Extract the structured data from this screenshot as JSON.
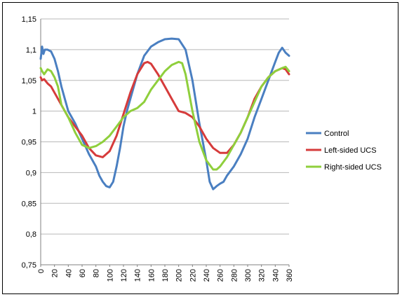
{
  "chart_data": {
    "type": "line",
    "title": "",
    "xlabel": "",
    "ylabel": "",
    "xlim": [
      0,
      360
    ],
    "ylim": [
      0.75,
      1.15
    ],
    "grid": true,
    "legend": "right",
    "x_ticks": [
      "0",
      "20",
      "40",
      "60",
      "80",
      "100",
      "120",
      "140",
      "160",
      "180",
      "200",
      "220",
      "240",
      "260",
      "280",
      "300",
      "320",
      "340",
      "360"
    ],
    "y_ticks": [
      "0,75",
      "0,8",
      "0,85",
      "0,9",
      "0,95",
      "1",
      "1,05",
      "1,1",
      "1,15"
    ],
    "x_tick_values": [
      0,
      20,
      40,
      60,
      80,
      100,
      120,
      140,
      160,
      180,
      200,
      220,
      240,
      260,
      280,
      300,
      320,
      340,
      360
    ],
    "y_tick_values": [
      0.75,
      0.8,
      0.85,
      0.9,
      0.95,
      1.0,
      1.05,
      1.1,
      1.15
    ],
    "series": [
      {
        "name": "Control",
        "color": "#4a7fc1",
        "x": [
          0,
          2,
          4,
          6,
          10,
          15,
          20,
          25,
          30,
          35,
          40,
          50,
          60,
          70,
          80,
          85,
          90,
          95,
          100,
          105,
          110,
          115,
          120,
          125,
          130,
          140,
          150,
          160,
          170,
          180,
          190,
          200,
          210,
          220,
          230,
          240,
          245,
          250,
          255,
          260,
          265,
          270,
          280,
          290,
          300,
          310,
          320,
          330,
          340,
          345,
          350,
          355,
          360
        ],
        "y": [
          1.085,
          1.105,
          1.093,
          1.1,
          1.1,
          1.097,
          1.085,
          1.065,
          1.04,
          1.02,
          1.0,
          0.98,
          0.955,
          0.93,
          0.91,
          0.895,
          0.885,
          0.878,
          0.876,
          0.885,
          0.91,
          0.94,
          0.975,
          1.0,
          1.02,
          1.06,
          1.09,
          1.105,
          1.112,
          1.117,
          1.118,
          1.117,
          1.1,
          1.05,
          0.98,
          0.92,
          0.885,
          0.873,
          0.878,
          0.882,
          0.885,
          0.895,
          0.91,
          0.93,
          0.955,
          0.99,
          1.02,
          1.05,
          1.08,
          1.095,
          1.103,
          1.095,
          1.09
        ]
      },
      {
        "name": "Left-sided UCS",
        "color": "#d63b3b",
        "x": [
          0,
          2,
          5,
          10,
          15,
          20,
          30,
          40,
          50,
          60,
          70,
          80,
          90,
          100,
          110,
          120,
          130,
          140,
          150,
          155,
          160,
          170,
          180,
          190,
          200,
          210,
          220,
          230,
          240,
          250,
          260,
          270,
          280,
          290,
          300,
          310,
          320,
          330,
          340,
          350,
          355,
          360
        ],
        "y": [
          1.055,
          1.05,
          1.052,
          1.045,
          1.04,
          1.03,
          1.01,
          0.99,
          0.975,
          0.96,
          0.94,
          0.928,
          0.925,
          0.935,
          0.96,
          0.995,
          1.03,
          1.06,
          1.078,
          1.08,
          1.077,
          1.06,
          1.04,
          1.02,
          1.0,
          0.997,
          0.99,
          0.975,
          0.955,
          0.94,
          0.932,
          0.932,
          0.945,
          0.965,
          0.99,
          1.02,
          1.04,
          1.055,
          1.065,
          1.07,
          1.068,
          1.06
        ]
      },
      {
        "name": "Right-sided UCS",
        "color": "#8fcf3c",
        "x": [
          0,
          2,
          5,
          10,
          15,
          20,
          25,
          30,
          40,
          50,
          60,
          70,
          80,
          90,
          100,
          110,
          120,
          130,
          140,
          150,
          160,
          170,
          180,
          190,
          200,
          205,
          210,
          220,
          230,
          240,
          250,
          255,
          260,
          270,
          280,
          290,
          300,
          310,
          320,
          330,
          340,
          350,
          355,
          360
        ],
        "y": [
          1.07,
          1.065,
          1.06,
          1.068,
          1.065,
          1.055,
          1.04,
          1.01,
          0.99,
          0.965,
          0.945,
          0.94,
          0.943,
          0.95,
          0.96,
          0.975,
          0.99,
          1.0,
          1.005,
          1.015,
          1.035,
          1.05,
          1.065,
          1.075,
          1.08,
          1.078,
          1.06,
          1.0,
          0.95,
          0.92,
          0.905,
          0.905,
          0.91,
          0.925,
          0.945,
          0.965,
          0.99,
          1.015,
          1.04,
          1.055,
          1.065,
          1.07,
          1.072,
          1.065
        ]
      }
    ]
  }
}
